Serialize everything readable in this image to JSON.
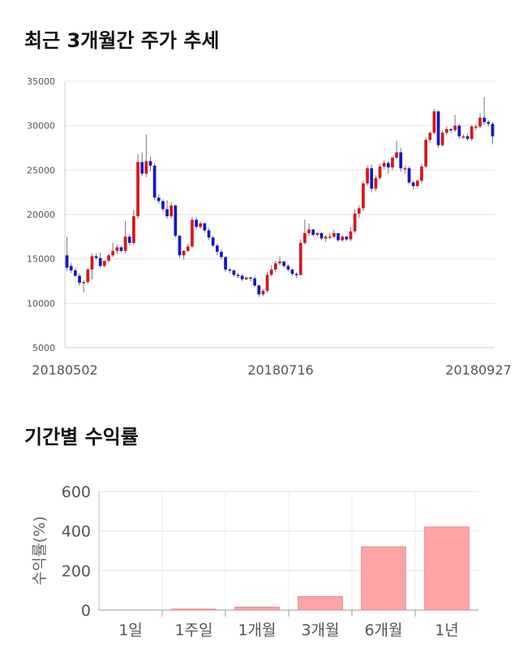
{
  "sections": {
    "price_title": "최근 3개월간 주가 추세",
    "returns_title": "기간별 수익률"
  },
  "colors": {
    "up": "#d6161a",
    "down": "#1515c8",
    "bar": "#ffa4a4",
    "bar_edge": "#e08a8a"
  },
  "chart_data": [
    {
      "type": "candlestick",
      "title": "최근 3개월간 주가 추세",
      "xlabel": "",
      "ylabel": "",
      "ylim": [
        5000,
        35000
      ],
      "y_ticks": [
        5000,
        10000,
        15000,
        20000,
        25000,
        30000,
        35000
      ],
      "x_tick_labels": [
        "20180502",
        "20180716",
        "20180927"
      ],
      "grid": true,
      "open": [
        15400,
        14200,
        13700,
        13100,
        12300,
        12400,
        13800,
        15300,
        15100,
        14200,
        14800,
        15400,
        15900,
        16300,
        15900,
        17500,
        16800,
        19800,
        25900,
        24600,
        26000,
        25500,
        21900,
        21500,
        20600,
        19800,
        21000,
        17600,
        15400,
        15900,
        16400,
        19400,
        18600,
        19000,
        18200,
        17400,
        16500,
        15800,
        15200,
        13800,
        13700,
        13200,
        13100,
        12700,
        12900,
        12800,
        12000,
        11000,
        11400,
        13200,
        13800,
        14500,
        14700,
        14200,
        13800,
        13300,
        13200,
        16800,
        17900,
        18300,
        17700,
        17900,
        17300,
        17500,
        17500,
        17900,
        17100,
        17500,
        17200,
        18100,
        20100,
        20700,
        23500,
        25200,
        22900,
        24100,
        25400,
        25800,
        25300,
        26400,
        27000,
        25200,
        25200,
        23600,
        23200,
        23800,
        25400,
        28400,
        29200,
        31600,
        27800,
        29200,
        29600,
        29500,
        30000,
        28800,
        28800,
        28500,
        29900,
        29900,
        30900,
        30400,
        30200
      ],
      "close": [
        14000,
        13700,
        13100,
        12300,
        12400,
        13800,
        15300,
        15100,
        14200,
        14800,
        15400,
        15900,
        16300,
        15900,
        17500,
        16800,
        19800,
        25900,
        24600,
        26000,
        25500,
        21900,
        21500,
        20600,
        19800,
        21000,
        17600,
        15400,
        15900,
        16400,
        19400,
        18600,
        19000,
        18200,
        17400,
        16500,
        15800,
        15200,
        13800,
        13700,
        13200,
        13100,
        12700,
        12900,
        12800,
        12000,
        11000,
        11400,
        13200,
        13800,
        14500,
        14700,
        14200,
        13800,
        13300,
        13200,
        16800,
        17900,
        18300,
        17700,
        17900,
        17300,
        17500,
        17500,
        17900,
        17100,
        17500,
        17200,
        18100,
        20100,
        20700,
        23500,
        25200,
        22900,
        24100,
        25400,
        25800,
        25300,
        26400,
        27000,
        25200,
        25200,
        23600,
        23200,
        23800,
        25400,
        28400,
        29200,
        31600,
        27800,
        29200,
        29600,
        29500,
        30000,
        28800,
        28800,
        28500,
        29900,
        29900,
        30900,
        30400,
        30200,
        28800
      ],
      "high": [
        17500,
        14500,
        14000,
        13400,
        12600,
        14000,
        15600,
        15600,
        15700,
        14500,
        15600,
        16800,
        16600,
        16500,
        19300,
        17800,
        20500,
        26800,
        27000,
        29000,
        26500,
        25800,
        22200,
        21700,
        21600,
        21400,
        21100,
        17700,
        16000,
        16700,
        19700,
        19700,
        19200,
        19100,
        18500,
        17600,
        16700,
        16100,
        15300,
        14000,
        13800,
        13400,
        13300,
        13000,
        13000,
        13100,
        12100,
        11600,
        13500,
        14300,
        14800,
        15300,
        14800,
        14400,
        13900,
        13500,
        17200,
        19400,
        19000,
        18400,
        18000,
        18000,
        17700,
        17900,
        18300,
        17900,
        17700,
        17600,
        18600,
        20600,
        21000,
        23800,
        25500,
        25600,
        24400,
        25700,
        26100,
        26000,
        26600,
        28300,
        27500,
        25500,
        25400,
        23800,
        24000,
        25700,
        28700,
        29300,
        31900,
        31700,
        29500,
        29900,
        29800,
        31200,
        30200,
        29000,
        29100,
        30100,
        30200,
        31400,
        33200,
        30600,
        30400
      ],
      "low": [
        13600,
        13400,
        12900,
        12000,
        11200,
        12200,
        12700,
        14900,
        14000,
        14000,
        14600,
        15200,
        15600,
        15700,
        15600,
        16500,
        16600,
        19500,
        24300,
        24200,
        24800,
        21600,
        21200,
        20300,
        19500,
        19600,
        17400,
        15100,
        14900,
        15800,
        16200,
        18300,
        18400,
        18000,
        17100,
        16300,
        15400,
        14900,
        13500,
        13400,
        13000,
        12800,
        12500,
        12600,
        12500,
        11800,
        10700,
        10800,
        11200,
        13000,
        13500,
        14300,
        14000,
        13600,
        13100,
        12800,
        13100,
        16600,
        17600,
        17500,
        17500,
        17100,
        16900,
        17200,
        17300,
        16900,
        16900,
        17000,
        17000,
        17900,
        19600,
        20400,
        23200,
        22500,
        22600,
        23900,
        25100,
        24600,
        25000,
        26200,
        24800,
        24600,
        23400,
        22800,
        23000,
        23500,
        25200,
        28100,
        29000,
        27500,
        27600,
        29000,
        29200,
        29300,
        28500,
        28500,
        28300,
        28300,
        29500,
        29700,
        30100,
        29900,
        27900
      ]
    },
    {
      "type": "bar",
      "title": "기간별 수익률",
      "categories": [
        "1일",
        "1주일",
        "1개월",
        "3개월",
        "6개월",
        "1년"
      ],
      "values": [
        0,
        5,
        15,
        68,
        320,
        420
      ],
      "xlabel": "",
      "ylabel": "수익률(%)",
      "ylim": [
        0,
        600
      ],
      "y_ticks": [
        0,
        200,
        400,
        600
      ],
      "grid": true
    }
  ]
}
